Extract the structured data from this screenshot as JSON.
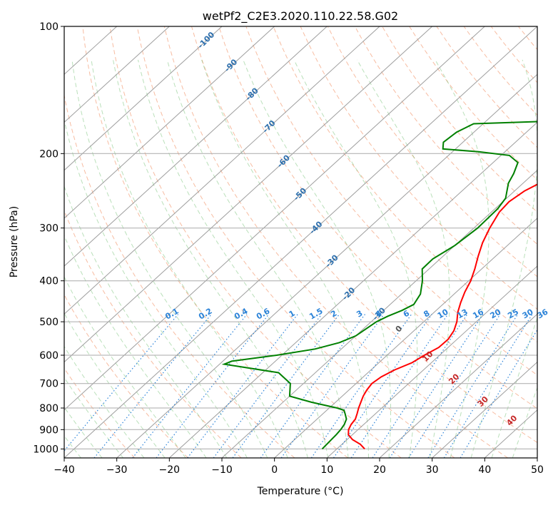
{
  "chart_data": {
    "type": "line",
    "title": "wetPf2_C2E3.2020.110.22.58.G02",
    "xlabel": "Temperature (°C)",
    "ylabel": "Pressure (hPa)",
    "xlim": [
      -40,
      50
    ],
    "ylim": [
      1050,
      100
    ],
    "y_scale": "log",
    "grid": true,
    "x_ticks": [
      -40,
      -30,
      -20,
      -10,
      0,
      10,
      20,
      30,
      40,
      50
    ],
    "y_ticks": [
      1000,
      900,
      800,
      700,
      600,
      500,
      400,
      300,
      200,
      100
    ],
    "series": [
      {
        "color": "#ff0000",
        "points": [
          [
            15.3,
            1000
          ],
          [
            13.5,
            975
          ],
          [
            11,
            950
          ],
          [
            9.2,
            925
          ],
          [
            8.2,
            900
          ],
          [
            7.6,
            875
          ],
          [
            7.3,
            850
          ],
          [
            6.5,
            825
          ],
          [
            5.6,
            800
          ],
          [
            4.8,
            775
          ],
          [
            4,
            750
          ],
          [
            3.4,
            725
          ],
          [
            3,
            700
          ],
          [
            3.4,
            675
          ],
          [
            4.5,
            650
          ],
          [
            6.3,
            625
          ],
          [
            7.1,
            600
          ],
          [
            8.2,
            575
          ],
          [
            8.3,
            550
          ],
          [
            7.6,
            525
          ],
          [
            6.3,
            500
          ],
          [
            4.5,
            475
          ],
          [
            3,
            450
          ],
          [
            1.6,
            425
          ],
          [
            0.4,
            400
          ],
          [
            -1.3,
            375
          ],
          [
            -3.3,
            350
          ],
          [
            -5.3,
            325
          ],
          [
            -7,
            300
          ],
          [
            -8.5,
            275
          ],
          [
            -8.8,
            260
          ],
          [
            -8.1,
            245
          ],
          [
            -6.2,
            230
          ],
          [
            -4.5,
            215
          ],
          [
            -2.5,
            200
          ],
          [
            1.3,
            190
          ],
          [
            6,
            180
          ],
          [
            9.4,
            172
          ],
          [
            11.2,
            162
          ],
          [
            12.1,
            150
          ],
          [
            13.5,
            140
          ],
          [
            16.2,
            130
          ],
          [
            20,
            120
          ],
          [
            22.2,
            113
          ],
          [
            23.5,
            108
          ],
          [
            25.4,
            100
          ]
        ]
      },
      {
        "color": "#008000",
        "points": [
          [
            7.2,
            1000
          ],
          [
            7.1,
            975
          ],
          [
            7,
            950
          ],
          [
            6.9,
            925
          ],
          [
            6.7,
            900
          ],
          [
            6.3,
            875
          ],
          [
            5.6,
            850
          ],
          [
            4.2,
            825
          ],
          [
            3.3,
            810
          ],
          [
            1.5,
            800
          ],
          [
            -4.6,
            775
          ],
          [
            -10,
            750
          ],
          [
            -12.5,
            700
          ],
          [
            -17,
            660
          ],
          [
            -25,
            640
          ],
          [
            -29.1,
            630
          ],
          [
            -28.3,
            620
          ],
          [
            -21,
            600
          ],
          [
            -15,
            580
          ],
          [
            -11.7,
            560
          ],
          [
            -10,
            540
          ],
          [
            -9.5,
            520
          ],
          [
            -9,
            500
          ],
          [
            -8,
            485
          ],
          [
            -6.5,
            470
          ],
          [
            -5.5,
            455
          ],
          [
            -6.4,
            430
          ],
          [
            -8.8,
            400
          ],
          [
            -11.3,
            375
          ],
          [
            -11.4,
            355
          ],
          [
            -10,
            330
          ],
          [
            -9.3,
            300
          ],
          [
            -9.5,
            270
          ],
          [
            -10.2,
            255
          ],
          [
            -12.8,
            235
          ],
          [
            -13.8,
            223
          ],
          [
            -15.3,
            210
          ],
          [
            -18.4,
            202
          ],
          [
            -25,
            198
          ],
          [
            -32.4,
            195
          ],
          [
            -33.7,
            188
          ],
          [
            -33.3,
            178
          ],
          [
            -31.8,
            170
          ],
          [
            -20,
            168
          ],
          [
            -12.5,
            165
          ],
          [
            -7.5,
            155
          ],
          [
            -6.2,
            145
          ],
          [
            -7.5,
            138
          ],
          [
            -10.7,
            133
          ],
          [
            -16,
            130
          ],
          [
            -23,
            129
          ],
          [
            -25.8,
            125
          ],
          [
            -18,
            120
          ],
          [
            -13.6,
            115
          ],
          [
            -9.5,
            108
          ],
          [
            -3,
            100
          ]
        ]
      }
    ],
    "isotherm_labels": [
      "-100",
      "-90",
      "-80",
      "-70",
      "-60",
      "-50",
      "-40",
      "-30",
      "-20",
      "-10"
    ],
    "mixing_ratio_labels": [
      "0.1",
      "0.2",
      "0.4",
      "0.6",
      "1",
      "1.5",
      "2",
      "3",
      "4",
      "6",
      "8",
      "10",
      "13",
      "16",
      "20",
      "25",
      "30",
      "36"
    ],
    "moist_adiabat_labels": [
      "0",
      "10",
      "20",
      "30",
      "40"
    ]
  }
}
